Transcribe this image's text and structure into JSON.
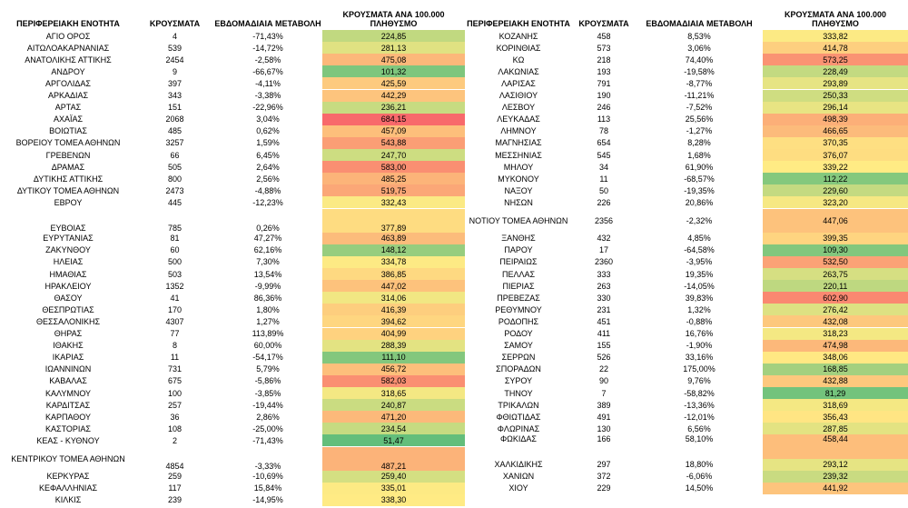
{
  "left": {
    "headers": [
      "ΠΕΡΙΦΕΡΕΙΑΚΗ ΕΝΟΤΗΤΑ",
      "ΚΡΟΥΣΜΑΤΑ",
      "ΕΒΔΟΜΑΔΙΑΙΑ ΜΕΤΑΒΟΛΗ",
      "ΚΡΟΥΣΜΑΤΑ ΑΝΑ 100.000 ΠΛΗΘΥΣΜΟ"
    ],
    "rows": [
      [
        "ΑΓΙΟ ΟΡΟΣ",
        "4",
        "-71,43%",
        "224,85"
      ],
      [
        "ΑΙΤΩΛΟΑΚΑΡΝΑΝΙΑΣ",
        "539",
        "-14,72%",
        "281,13"
      ],
      [
        "ΑΝΑΤΟΛΙΚΗΣ ΑΤΤΙΚΗΣ",
        "2454",
        "-2,58%",
        "475,08"
      ],
      [
        "ΑΝΔΡΟΥ",
        "9",
        "-66,67%",
        "101,32"
      ],
      [
        "ΑΡΓΟΛΙΔΑΣ",
        "397",
        "-4,11%",
        "425,59"
      ],
      [
        "ΑΡΚΑΔΙΑΣ",
        "343",
        "-3,38%",
        "442,29"
      ],
      [
        "ΑΡΤΑΣ",
        "151",
        "-22,96%",
        "236,21"
      ],
      [
        "ΑΧΑΪΑΣ",
        "2068",
        "3,04%",
        "684,15"
      ],
      [
        "ΒΟΙΩΤΙΑΣ",
        "485",
        "0,62%",
        "457,09"
      ],
      [
        "ΒΟΡΕΙΟΥ ΤΟΜΕΑ ΑΘΗΝΩΝ",
        "3257",
        "1,59%",
        "543,88"
      ],
      [
        "ΓΡΕΒΕΝΩΝ",
        "66",
        "6,45%",
        "247,70"
      ],
      [
        "ΔΡΑΜΑΣ",
        "505",
        "2,64%",
        "583,00"
      ],
      [
        "ΔΥΤΙΚΗΣ ΑΤΤΙΚΗΣ",
        "800",
        "2,56%",
        "485,25"
      ],
      [
        "ΔΥΤΙΚΟΥ ΤΟΜΕΑ ΑΘΗΝΩΝ",
        "2473",
        "-4,88%",
        "519,75"
      ],
      [
        "ΕΒΡΟΥ",
        "445",
        "-12,23%",
        "332,43"
      ],
      [
        "ΕΥΒΟΙΑΣ",
        "785",
        "0,26%",
        "377,89"
      ],
      [
        "ΕΥΡΥΤΑΝΙΑΣ",
        "81",
        "47,27%",
        "463,89"
      ],
      [
        "ΖΑΚΥΝΘΟΥ",
        "60",
        "62,16%",
        "148,12"
      ],
      [
        "ΗΛΕΙΑΣ",
        "500",
        "7,30%",
        "334,78"
      ],
      [
        "ΗΜΑΘΙΑΣ",
        "503",
        "13,54%",
        "386,85"
      ],
      [
        "ΗΡΑΚΛΕΙΟΥ",
        "1352",
        "-9,99%",
        "447,02"
      ],
      [
        "ΘΑΣΟΥ",
        "41",
        "86,36%",
        "314,06"
      ],
      [
        "ΘΕΣΠΡΩΤΙΑΣ",
        "170",
        "1,80%",
        "416,39"
      ],
      [
        "ΘΕΣΣΑΛΟΝΙΚΗΣ",
        "4307",
        "1,27%",
        "394,62"
      ],
      [
        "ΘΗΡΑΣ",
        "77",
        "113,89%",
        "404,99"
      ],
      [
        "ΙΘΑΚΗΣ",
        "8",
        "60,00%",
        "288,39"
      ],
      [
        "ΙΚΑΡΙΑΣ",
        "11",
        "-54,17%",
        "111,10"
      ],
      [
        "ΙΩΑΝΝΙΝΩΝ",
        "731",
        "5,79%",
        "456,72"
      ],
      [
        "ΚΑΒΑΛΑΣ",
        "675",
        "-5,86%",
        "582,03"
      ],
      [
        "ΚΑΛΥΜΝΟΥ",
        "100",
        "-3,85%",
        "318,65"
      ],
      [
        "ΚΑΡΔΙΤΣΑΣ",
        "257",
        "-19,44%",
        "240,87"
      ],
      [
        "ΚΑΡΠΑΘΟΥ",
        "36",
        "2,86%",
        "471,20"
      ],
      [
        "ΚΑΣΤΟΡΙΑΣ",
        "108",
        "-25,00%",
        "234,54"
      ],
      [
        "ΚΕΑΣ - ΚΥΘΝΟΥ",
        "2",
        "-71,43%",
        "51,47"
      ],
      [
        "ΚΕΝΤΡΙΚΟΥ ΤΟΜΕΑ ΑΘΗΝΩΝ",
        "4854",
        "-3,33%",
        "487,21"
      ],
      [
        "ΚΕΡΚΥΡΑΣ",
        "259",
        "-10,69%",
        "259,40"
      ],
      [
        "ΚΕΦΑΛΛΗΝΙΑΣ",
        "117",
        "15,84%",
        "335,01"
      ],
      [
        "ΚΙΛΚΙΣ",
        "239",
        "-14,95%",
        "338,30"
      ]
    ]
  },
  "right": {
    "headers": [
      "ΠΕΡΙΦΕΡΕΙΑΚΗ ΕΝΟΤΗΤΑ",
      "ΚΡΟΥΣΜΑΤΑ",
      "ΕΒΔΟΜΑΔΙΑΙΑ ΜΕΤΑΒΟΛΗ",
      "ΚΡΟΥΣΜΑΤΑ ΑΝΑ 100.000 ΠΛΗΘΥΣΜΟ"
    ],
    "rows": [
      [
        "ΚΟΖΑΝΗΣ",
        "458",
        "8,53%",
        "333,82"
      ],
      [
        "ΚΟΡΙΝΘΙΑΣ",
        "573",
        "3,06%",
        "414,78"
      ],
      [
        "ΚΩ",
        "218",
        "74,40%",
        "573,25"
      ],
      [
        "ΛΑΚΩΝΙΑΣ",
        "193",
        "-19,58%",
        "228,49"
      ],
      [
        "ΛΑΡΙΣΑΣ",
        "791",
        "-8,77%",
        "293,89"
      ],
      [
        "ΛΑΣΙΘΙΟΥ",
        "190",
        "-11,21%",
        "250,33"
      ],
      [
        "ΛΕΣΒΟΥ",
        "246",
        "-7,52%",
        "296,14"
      ],
      [
        "ΛΕΥΚΑΔΑΣ",
        "113",
        "25,56%",
        "498,39"
      ],
      [
        "ΛΗΜΝΟΥ",
        "78",
        "-1,27%",
        "466,65"
      ],
      [
        "ΜΑΓΝΗΣΙΑΣ",
        "654",
        "8,28%",
        "370,35"
      ],
      [
        "ΜΕΣΣΗΝΙΑΣ",
        "545",
        "1,68%",
        "376,07"
      ],
      [
        "ΜΗΛΟΥ",
        "34",
        "61,90%",
        "339,22"
      ],
      [
        "ΜΥΚΟΝΟΥ",
        "11",
        "-68,57%",
        "112,22"
      ],
      [
        "ΝΑΞΟΥ",
        "50",
        "-19,35%",
        "229,60"
      ],
      [
        "ΝΗΣΩΝ",
        "226",
        "20,86%",
        "323,20"
      ],
      [
        "ΝΟΤΙΟΥ ΤΟΜΕΑ ΑΘΗΝΩΝ",
        "2356",
        "-2,32%",
        "447,06"
      ],
      [
        "ΞΑΝΘΗΣ",
        "432",
        "4,85%",
        "399,35"
      ],
      [
        "ΠΑΡΟΥ",
        "17",
        "-64,58%",
        "109,30"
      ],
      [
        "ΠΕΙΡΑΙΩΣ",
        "2360",
        "-3,95%",
        "532,50"
      ],
      [
        "ΠΕΛΛΑΣ",
        "333",
        "19,35%",
        "263,75"
      ],
      [
        "ΠΙΕΡΙΑΣ",
        "263",
        "-14,05%",
        "220,11"
      ],
      [
        "ΠΡΕΒΕΖΑΣ",
        "330",
        "39,83%",
        "602,90"
      ],
      [
        "ΡΕΘΥΜΝΟΥ",
        "231",
        "1,32%",
        "276,42"
      ],
      [
        "ΡΟΔΟΠΗΣ",
        "451",
        "-0,88%",
        "432,08"
      ],
      [
        "ΡΟΔΟΥ",
        "411",
        "16,76%",
        "318,23"
      ],
      [
        "ΣΑΜΟΥ",
        "155",
        "-1,90%",
        "474,98"
      ],
      [
        "ΣΕΡΡΩΝ",
        "526",
        "33,16%",
        "348,06"
      ],
      [
        "ΣΠΟΡΑΔΩΝ",
        "22",
        "175,00%",
        "168,85"
      ],
      [
        "ΣΥΡΟΥ",
        "90",
        "9,76%",
        "432,88"
      ],
      [
        "ΤΗΝΟΥ",
        "7",
        "-58,82%",
        "81,29"
      ],
      [
        "ΤΡΙΚΑΛΩΝ",
        "389",
        "-13,36%",
        "318,69"
      ],
      [
        "ΦΘΙΩΤΙΔΑΣ",
        "491",
        "-12,01%",
        "356,43"
      ],
      [
        "ΦΛΩΡΙΝΑΣ",
        "130",
        "6,56%",
        "287,85"
      ],
      [
        "ΦΩΚΙΔΑΣ",
        "166",
        "58,10%",
        "458,44"
      ],
      [
        "ΧΑΛΚΙΔΙΚΗΣ",
        "297",
        "18,80%",
        "293,12"
      ],
      [
        "ΧΑΝΙΩΝ",
        "372",
        "-6,06%",
        "239,32"
      ],
      [
        "ΧΙΟΥ",
        "229",
        "14,50%",
        "441,92"
      ]
    ]
  }
}
